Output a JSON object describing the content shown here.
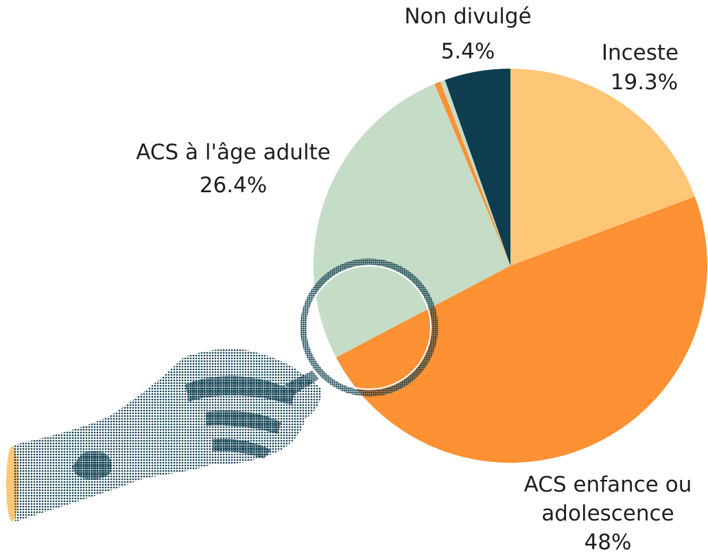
{
  "chart_data": {
    "type": "pie",
    "title": "",
    "slices": [
      {
        "label": "Inceste",
        "value": 19.3,
        "value_label": "19.3%",
        "color": "#fec677"
      },
      {
        "label": "ACS enfance ou adolescence",
        "value": 48,
        "value_label": "48%",
        "color": "#fd9133"
      },
      {
        "label": "ACS à l'âge adulte",
        "value": 26.4,
        "value_label": "26.4%",
        "color": "#c5dcc6"
      },
      {
        "label": "",
        "value": 0.5,
        "value_label": "",
        "color": "#fd9133"
      },
      {
        "label": "",
        "value": 0.4,
        "value_label": "",
        "color": "#c5dcc6"
      },
      {
        "label": "Non divulgé",
        "value": 5.4,
        "value_label": "5.4%",
        "color": "#0d3d4f"
      }
    ],
    "start_angle": "12 o'clock",
    "direction": "clockwise",
    "legend": "none"
  },
  "labels": {
    "inceste": {
      "name": "Inceste",
      "pct": "19.3%"
    },
    "acs_enfance": {
      "line1": "ACS enfance ou",
      "line2": "adolescence",
      "pct": "48%"
    },
    "acs_adulte": {
      "name": "ACS à l'âge adulte",
      "pct": "26.4%"
    },
    "non_divulge": {
      "name": "Non divulgé",
      "pct": "5.4%"
    }
  },
  "illustration": {
    "description_icon": "hand-holding-magnifying-glass",
    "colors": {
      "ink": "#0d3d4f",
      "cuff": "#fec677"
    }
  }
}
